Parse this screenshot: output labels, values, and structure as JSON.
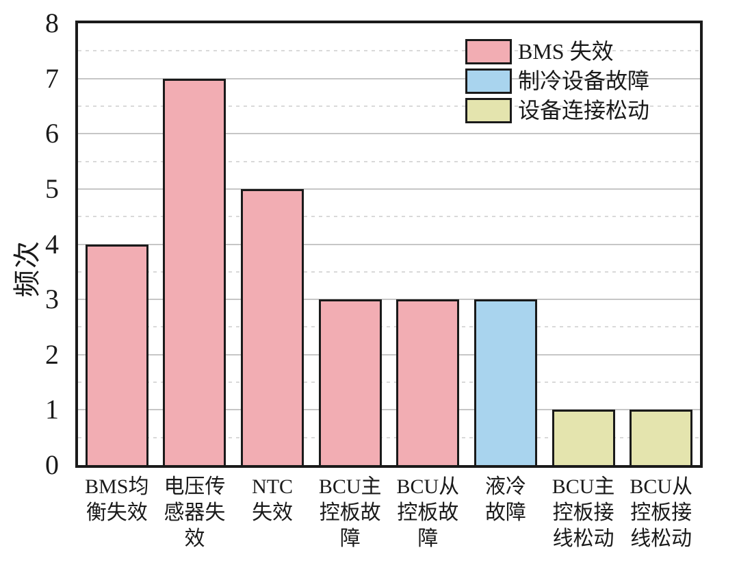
{
  "chart_data": {
    "type": "bar",
    "title": "",
    "xlabel": "",
    "ylabel": "频次",
    "ylim": [
      0,
      8
    ],
    "yticks": [
      "0",
      "1",
      "2",
      "3",
      "4",
      "5",
      "6",
      "7",
      "8"
    ],
    "grid": {
      "on": true,
      "solid_at": [
        1,
        2,
        3,
        4,
        5,
        6,
        7
      ],
      "dashed_at": [
        0.5,
        1.5,
        2.5,
        3.5,
        4.5,
        5.5,
        6.5,
        7.5
      ]
    },
    "categories": [
      "BMS均衡失效",
      "电压传感器失效",
      "NTC失效",
      "BCU主控板故障",
      "BCU从控板故障",
      "液冷故障",
      "BCU主控板接线松动",
      "BCU从控板接线松动"
    ],
    "values": [
      4,
      7,
      5,
      3,
      3,
      3,
      1,
      1
    ],
    "bars": [
      {
        "category": "BMS均衡失效",
        "label_lines": "BMS均\n衡失效",
        "value": 4,
        "group": "BMS 失效"
      },
      {
        "category": "电压传感器失效",
        "label_lines": "电压传\n感器失\n效",
        "value": 7,
        "group": "BMS 失效"
      },
      {
        "category": "NTC失效",
        "label_lines": "NTC\n失效",
        "value": 5,
        "group": "BMS 失效"
      },
      {
        "category": "BCU主控板故障",
        "label_lines": "BCU主\n控板故\n障",
        "value": 3,
        "group": "BMS 失效"
      },
      {
        "category": "BCU从控板故障",
        "label_lines": "BCU从\n控板故\n障",
        "value": 3,
        "group": "BMS 失效"
      },
      {
        "category": "液冷故障",
        "label_lines": "液冷\n故障",
        "value": 3,
        "group": "制冷设备故障"
      },
      {
        "category": "BCU主控板接线松动",
        "label_lines": "BCU主\n控板接\n线松动",
        "value": 1,
        "group": "设备连接松动"
      },
      {
        "category": "BCU从控板接线松动",
        "label_lines": "BCU从\n控板接\n线松动",
        "value": 1,
        "group": "设备连接松动"
      }
    ],
    "legend": {
      "position": "top-right",
      "entries": [
        {
          "label": "BMS 失效",
          "color": "#F2ADB3"
        },
        {
          "label": "制冷设备故障",
          "color": "#A9D4EE"
        },
        {
          "label": "设备连接松动",
          "color": "#E4E4AE"
        }
      ]
    },
    "style": {
      "bar_border_color": "#1a1a1a",
      "axis_frame_color": "#1a1a1a",
      "grid_solid_color": "#c6c6c6",
      "grid_dashed_color": "#d9d9d9",
      "background": "#ffffff"
    }
  }
}
